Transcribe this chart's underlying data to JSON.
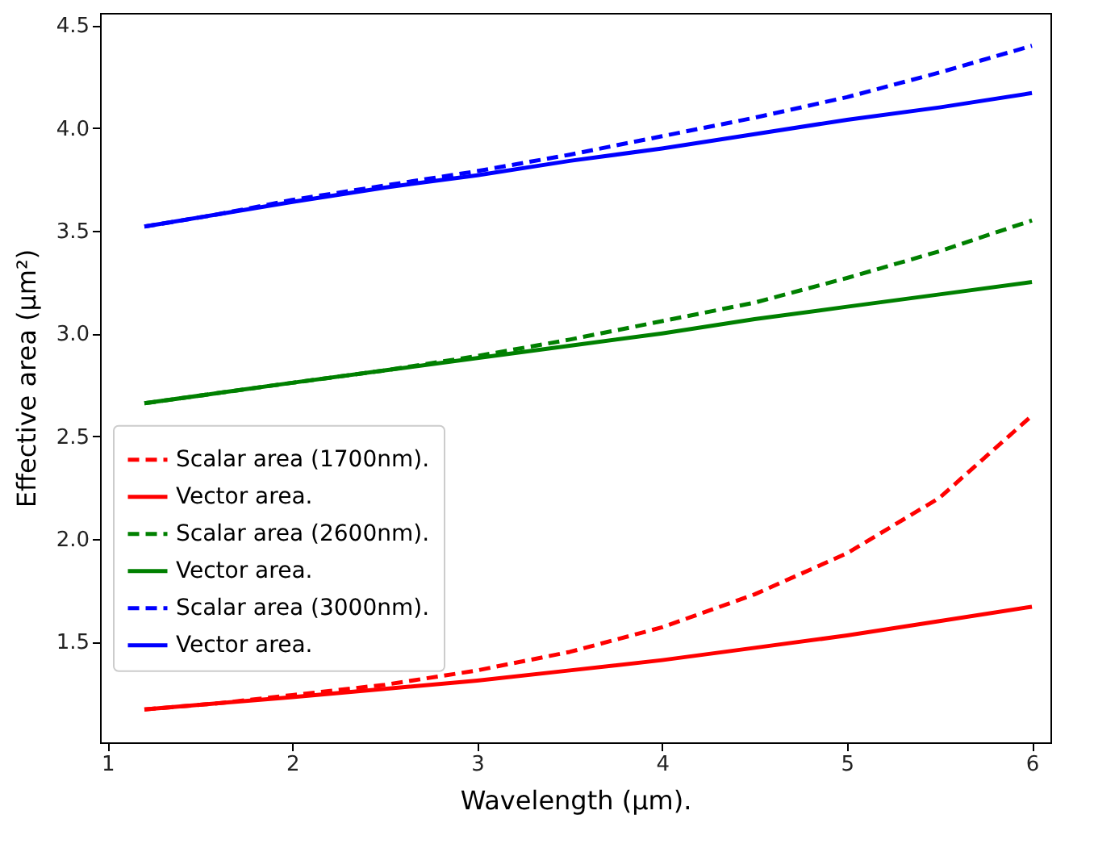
{
  "chart_data": {
    "type": "line",
    "xlabel": "Wavelength (μm).",
    "ylabel": "Effective area (μm²)",
    "x": [
      1.2,
      1.6,
      2,
      2.5,
      3,
      3.5,
      4,
      4.5,
      5,
      5.5,
      6
    ],
    "series": [
      {
        "name": "Scalar area (1700nm).",
        "color": "#ff0000",
        "line_style": "dashed",
        "values": [
          1.17,
          1.2,
          1.24,
          1.29,
          1.36,
          1.45,
          1.57,
          1.73,
          1.93,
          2.2,
          2.6
        ]
      },
      {
        "name": "Vector area.",
        "color": "#ff0000",
        "line_style": "solid",
        "values": [
          1.17,
          1.2,
          1.23,
          1.27,
          1.31,
          1.36,
          1.41,
          1.47,
          1.53,
          1.6,
          1.67
        ]
      },
      {
        "name": "Scalar area (2600nm).",
        "color": "#008000",
        "line_style": "dashed",
        "values": [
          2.66,
          2.71,
          2.76,
          2.82,
          2.89,
          2.97,
          3.06,
          3.15,
          3.27,
          3.4,
          3.55
        ]
      },
      {
        "name": "Vector area.",
        "color": "#008000",
        "line_style": "solid",
        "values": [
          2.66,
          2.71,
          2.76,
          2.82,
          2.88,
          2.94,
          3.0,
          3.07,
          3.13,
          3.19,
          3.25
        ]
      },
      {
        "name": "Scalar area (3000nm).",
        "color": "#0000ff",
        "line_style": "dashed",
        "values": [
          3.52,
          3.58,
          3.65,
          3.72,
          3.79,
          3.87,
          3.96,
          4.05,
          4.15,
          4.27,
          4.4
        ]
      },
      {
        "name": "Vector area.",
        "color": "#0000ff",
        "line_style": "solid",
        "values": [
          3.52,
          3.58,
          3.64,
          3.71,
          3.77,
          3.84,
          3.9,
          3.97,
          4.04,
          4.1,
          4.17
        ]
      }
    ],
    "xlim": [
      0.96,
      6.1
    ],
    "xticks": [
      1,
      2,
      3,
      4,
      5,
      6
    ],
    "ylim": [
      1.01,
      4.56
    ],
    "yticks": [
      1.5,
      {
        "value": 2,
        "label": "2.0"
      },
      2.5,
      {
        "value": 3,
        "label": "3.0"
      },
      3.5,
      {
        "value": 4,
        "label": "4.0"
      },
      4.5
    ],
    "grid": false,
    "legend": "left"
  }
}
